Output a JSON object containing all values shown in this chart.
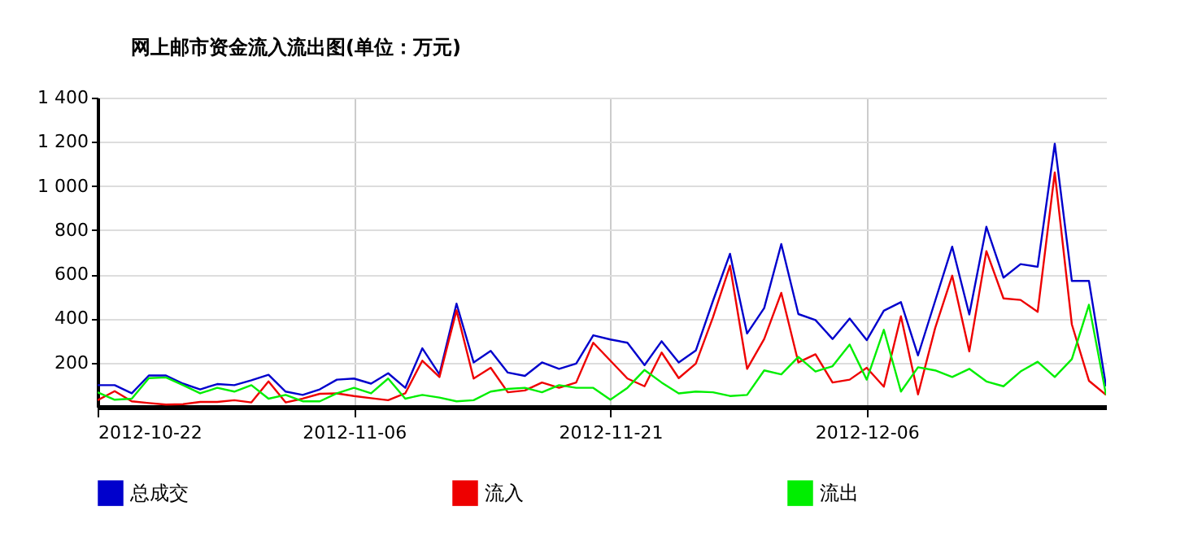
{
  "chart_data": {
    "type": "line",
    "title": "网上邮市资金流入流出图(单位：万元)",
    "x": [
      "2012-10-22",
      "2012-10-23",
      "2012-10-24",
      "2012-10-25",
      "2012-10-26",
      "2012-10-27",
      "2012-10-28",
      "2012-10-29",
      "2012-10-30",
      "2012-10-31",
      "2012-11-01",
      "2012-11-02",
      "2012-11-03",
      "2012-11-04",
      "2012-11-05",
      "2012-11-06",
      "2012-11-07",
      "2012-11-08",
      "2012-11-09",
      "2012-11-10",
      "2012-11-11",
      "2012-11-12",
      "2012-11-13",
      "2012-11-14",
      "2012-11-15",
      "2012-11-16",
      "2012-11-17",
      "2012-11-18",
      "2012-11-19",
      "2012-11-20",
      "2012-11-21",
      "2012-11-22",
      "2012-11-23",
      "2012-11-24",
      "2012-11-25",
      "2012-11-26",
      "2012-11-27",
      "2012-11-28",
      "2012-11-29",
      "2012-11-30",
      "2012-12-01",
      "2012-12-02",
      "2012-12-03",
      "2012-12-04",
      "2012-12-05",
      "2012-12-06",
      "2012-12-07",
      "2012-12-08",
      "2012-12-09",
      "2012-12-10",
      "2012-12-11",
      "2012-12-12",
      "2012-12-13",
      "2012-12-14",
      "2012-12-15",
      "2012-12-16",
      "2012-12-17",
      "2012-12-18",
      "2012-12-19",
      "2012-12-20"
    ],
    "series": [
      {
        "name": "总成交",
        "color": "#0000cc",
        "values": [
          98,
          98,
          61,
          142,
          142,
          105,
          79,
          103,
          98,
          120,
          145,
          69,
          54,
          79,
          123,
          128,
          105,
          152,
          86,
          265,
          147,
          467,
          201,
          253,
          155,
          140,
          201,
          172,
          196,
          324,
          305,
          290,
          189,
          297,
          201,
          255,
          479,
          693,
          332,
          447,
          737,
          420,
          393,
          307,
          400,
          302,
          435,
          474,
          233,
          479,
          725,
          418,
          815,
          585,
          646,
          634,
          1191,
          570,
          570,
          93
        ]
      },
      {
        "name": "流入",
        "color": "#ee0000",
        "values": [
          30,
          71,
          25,
          17,
          10,
          12,
          22,
          22,
          30,
          20,
          115,
          20,
          37,
          59,
          61,
          49,
          39,
          30,
          61,
          209,
          135,
          437,
          128,
          177,
          66,
          74,
          110,
          86,
          110,
          290,
          209,
          128,
          93,
          246,
          130,
          196,
          405,
          639,
          172,
          307,
          516,
          201,
          238,
          110,
          123,
          177,
          91,
          410,
          56,
          356,
          594,
          251,
          705,
          491,
          484,
          430,
          1061,
          373,
          118,
          54
        ]
      },
      {
        "name": "流出",
        "color": "#00ee00",
        "values": [
          66,
          32,
          37,
          130,
          133,
          98,
          61,
          86,
          69,
          98,
          37,
          54,
          25,
          25,
          61,
          86,
          61,
          128,
          37,
          54,
          42,
          25,
          30,
          69,
          81,
          86,
          66,
          98,
          86,
          86,
          32,
          86,
          167,
          110,
          61,
          69,
          66,
          49,
          54,
          165,
          147,
          226,
          160,
          184,
          282,
          123,
          349,
          69,
          179,
          165,
          135,
          172,
          115,
          93,
          160,
          204,
          135,
          216,
          462,
          54
        ]
      }
    ],
    "xlim": [
      "2012-10-22",
      "2012-12-20"
    ],
    "xticks": [
      "2012-10-22",
      "2012-11-06",
      "2012-11-21",
      "2012-12-06"
    ],
    "ylim": [
      0,
      1400
    ],
    "yticks": [
      {
        "value": 200,
        "label": "200"
      },
      {
        "value": 400,
        "label": "400"
      },
      {
        "value": 600,
        "label": "600"
      },
      {
        "value": 800,
        "label": "800"
      },
      {
        "value": 1000,
        "label": "1 000"
      },
      {
        "value": 1200,
        "label": "1 200"
      },
      {
        "value": 1400,
        "label": "1 400"
      }
    ],
    "grid": true,
    "legend": "bottom left",
    "marker": "none",
    "line_style": "solid"
  }
}
